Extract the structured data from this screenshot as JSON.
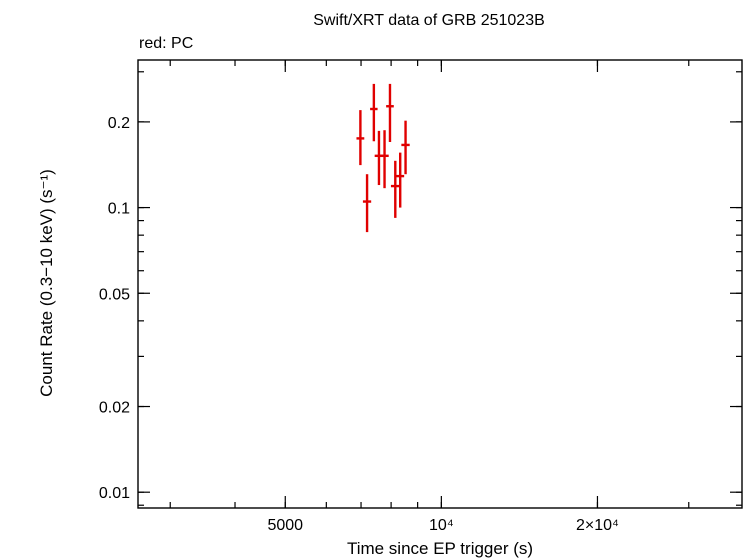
{
  "chart_data": {
    "type": "scatter",
    "title": "Swift/XRT data of GRB 251023B",
    "subtitle": "red: PC",
    "xlabel": "Time since EP trigger (s)",
    "ylabel": "Count Rate (0.3−10 keV) (s⁻¹)",
    "x_scale": "log",
    "y_scale": "log",
    "xlim": [
      2600,
      38000
    ],
    "ylim": [
      0.0088,
      0.33
    ],
    "x_ticks": [
      {
        "value": 5000,
        "label": "5000"
      },
      {
        "value": 10000,
        "label": "10⁴"
      },
      {
        "value": 20000,
        "label": "2×10⁴"
      }
    ],
    "y_ticks": [
      {
        "value": 0.01,
        "label": "0.01"
      },
      {
        "value": 0.02,
        "label": "0.02"
      },
      {
        "value": 0.05,
        "label": "0.05"
      },
      {
        "value": 0.1,
        "label": "0.1"
      },
      {
        "value": 0.2,
        "label": "0.2"
      }
    ],
    "series": [
      {
        "name": "PC",
        "color": "#e00000",
        "points": [
          {
            "x": 6980,
            "xerr": [
              90,
              90
            ],
            "y": 0.175,
            "yerr_low": 0.034,
            "yerr_high": 0.045
          },
          {
            "x": 7190,
            "xerr": [
              100,
              100
            ],
            "y": 0.105,
            "yerr_low": 0.023,
            "yerr_high": 0.026
          },
          {
            "x": 7410,
            "xerr": [
              90,
              90
            ],
            "y": 0.222,
            "yerr_low": 0.051,
            "yerr_high": 0.05
          },
          {
            "x": 7580,
            "xerr": [
              110,
              110
            ],
            "y": 0.152,
            "yerr_low": 0.032,
            "yerr_high": 0.034
          },
          {
            "x": 7770,
            "xerr": [
              110,
              110
            ],
            "y": 0.152,
            "yerr_low": 0.035,
            "yerr_high": 0.035
          },
          {
            "x": 7960,
            "xerr": [
              100,
              100
            ],
            "y": 0.227,
            "yerr_low": 0.057,
            "yerr_high": 0.045
          },
          {
            "x": 8150,
            "xerr": [
              120,
              120
            ],
            "y": 0.119,
            "yerr_low": 0.027,
            "yerr_high": 0.027
          },
          {
            "x": 8330,
            "xerr": [
              110,
              110
            ],
            "y": 0.129,
            "yerr_low": 0.029,
            "yerr_high": 0.027
          },
          {
            "x": 8530,
            "xerr": [
              120,
              120
            ],
            "y": 0.166,
            "yerr_low": 0.035,
            "yerr_high": 0.036
          }
        ]
      }
    ],
    "grid": false
  }
}
